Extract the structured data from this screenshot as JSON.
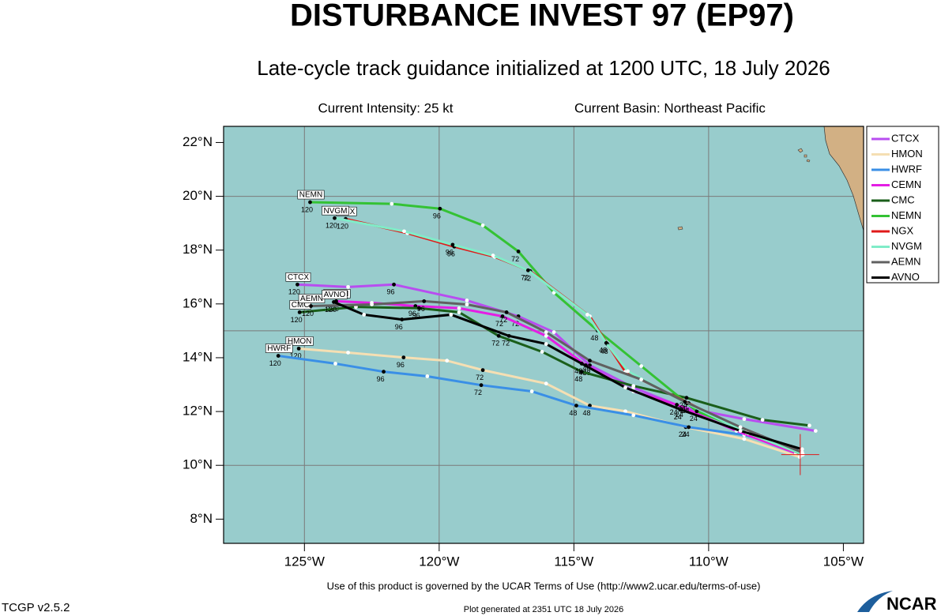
{
  "chart_data": {
    "type": "track",
    "title": "DISTURBANCE INVEST 97 (EP97)",
    "subtitle": "Late-cycle track guidance initialized at 1200 UTC, 18 July 2026",
    "intensity": "Current Intensity: 25 kt",
    "basin": "Current Basin: Northeast Pacific",
    "terms": "Use of this product is governed by the UCAR Terms of Use (http://www2.ucar.edu/terms-of-use)",
    "version": "TCGP v2.5.2",
    "generated": "Plot generated at 2351 UTC   18 July 2026",
    "logo": "NCAR",
    "xlim": [
      -128,
      -104.25
    ],
    "ylim": [
      7.1,
      22.6
    ],
    "xticks": [
      {
        "value": -125,
        "label": "125°W"
      },
      {
        "value": -120,
        "label": "120°W"
      },
      {
        "value": -115,
        "label": "115°W"
      },
      {
        "value": -110,
        "label": "110°W"
      },
      {
        "value": -105,
        "label": "105°W"
      }
    ],
    "yticks": [
      {
        "value": 8,
        "label": "8°N"
      },
      {
        "value": 10,
        "label": "10°N"
      },
      {
        "value": 12,
        "label": "12°N"
      },
      {
        "value": 14,
        "label": "14°N"
      },
      {
        "value": 16,
        "label": "16°N"
      },
      {
        "value": 18,
        "label": "18°N"
      },
      {
        "value": 20,
        "label": "20°N"
      },
      {
        "value": 22,
        "label": "22°N"
      }
    ],
    "x_grid": [
      -125,
      -120,
      -115,
      -110
    ],
    "y_grid": [
      10,
      15,
      20
    ],
    "current_position": {
      "lon": -106.6,
      "lat": 10.4
    },
    "hours": [
      0,
      12,
      24,
      36,
      48,
      60,
      72,
      84,
      96,
      108,
      120
    ],
    "labeled_hours": [
      24,
      48,
      72,
      96,
      120
    ],
    "legend": "upper right",
    "series": [
      {
        "name": "CTCX",
        "color": "#b84df0",
        "lon": [
          -106.03,
          -108.68,
          -110.97,
          -112.79,
          -114.41,
          -115.74,
          -117.06,
          -118.97,
          -121.68,
          -123.38,
          -125.26
        ],
        "lat": [
          11.28,
          11.72,
          12.16,
          12.89,
          13.72,
          14.95,
          15.54,
          16.13,
          16.72,
          16.63,
          16.72
        ]
      },
      {
        "name": "HMON",
        "color": "#f5dfb3",
        "lon": [
          -106.62,
          -108.68,
          -110.85,
          -113.09,
          -114.41,
          -116.03,
          -118.38,
          -119.71,
          -121.32,
          -123.38,
          -125.21
        ],
        "lat": [
          10.31,
          10.98,
          11.42,
          12.01,
          12.22,
          13.04,
          13.54,
          13.89,
          14.01,
          14.19,
          14.34
        ]
      },
      {
        "name": "HWRF",
        "color": "#3a8fe6",
        "lon": [
          -106.62,
          -108.68,
          -110.74,
          -112.79,
          -114.91,
          -116.56,
          -118.44,
          -120.44,
          -122.06,
          -123.85,
          -125.97
        ],
        "lat": [
          10.6,
          11.13,
          11.42,
          11.86,
          12.22,
          12.75,
          12.98,
          13.31,
          13.48,
          13.78,
          14.07
        ]
      },
      {
        "name": "CEMN",
        "color": "#e41ee4",
        "lon": [
          -106.76,
          -108.97,
          -111.18,
          -112.79,
          -114.56,
          -116.03,
          -117.65,
          -119.26,
          -120.88,
          -122.5,
          -123.82
        ],
        "lat": [
          10.45,
          11.28,
          12.25,
          12.75,
          13.72,
          14.81,
          15.54,
          15.84,
          15.92,
          16.04,
          16.1
        ]
      },
      {
        "name": "CMC",
        "color": "#1a5e1a",
        "lon": [
          -106.26,
          -108.0,
          -110.82,
          -112.79,
          -114.71,
          -116.18,
          -117.79,
          -119.26,
          -120.74,
          -123.09,
          -125.18
        ],
        "lat": [
          11.48,
          11.69,
          12.51,
          12.95,
          13.48,
          14.22,
          14.81,
          15.69,
          15.84,
          15.89,
          15.69
        ]
      },
      {
        "name": "NEMN",
        "color": "#34c234",
        "lon": [
          -106.53,
          -108.09,
          -110.44,
          -112.5,
          -114.12,
          -115.74,
          -117.06,
          -118.38,
          -119.97,
          -121.76,
          -124.79
        ],
        "lat": [
          10.39,
          11.1,
          12.01,
          13.69,
          15.01,
          16.42,
          17.95,
          18.92,
          19.54,
          19.72,
          19.78
        ]
      },
      {
        "name": "NGX",
        "color": "#e01a1a",
        "lon": [
          -106.5,
          -108.53,
          -110.74,
          -113.09,
          -113.76,
          -114.41,
          -116.62,
          -117.94,
          -119.44,
          -121.18,
          -123.47
        ],
        "lat": [
          10.4,
          11.19,
          12.31,
          13.48,
          14.51,
          15.54,
          17.22,
          17.75,
          18.13,
          18.63,
          19.16
        ]
      },
      {
        "name": "NVGM",
        "color": "#80ecc8",
        "lon": [
          -106.55,
          -108.6,
          -110.8,
          -113.0,
          -113.8,
          -114.5,
          -116.7,
          -118.0,
          -119.5,
          -121.3,
          -123.88
        ],
        "lat": [
          10.42,
          11.22,
          12.3,
          13.5,
          14.55,
          15.6,
          17.25,
          17.8,
          18.2,
          18.7,
          19.19
        ]
      },
      {
        "name": "AEMN",
        "color": "#606060",
        "lon": [
          -106.53,
          -108.82,
          -110.88,
          -112.5,
          -114.41,
          -116.03,
          -117.5,
          -118.97,
          -120.56,
          -122.5,
          -124.76
        ],
        "lat": [
          10.48,
          11.42,
          12.36,
          13.19,
          13.89,
          14.95,
          15.69,
          15.98,
          16.1,
          15.98,
          15.92
        ]
      },
      {
        "name": "AVNO",
        "color": "#000000",
        "lon": [
          -106.53,
          -108.82,
          -111.03,
          -113.09,
          -114.71,
          -116.03,
          -117.41,
          -119.56,
          -121.38,
          -122.79,
          -123.91
        ],
        "lat": [
          10.6,
          11.28,
          12.07,
          12.89,
          13.78,
          14.51,
          14.81,
          15.6,
          15.42,
          15.6,
          16.07
        ]
      }
    ]
  }
}
